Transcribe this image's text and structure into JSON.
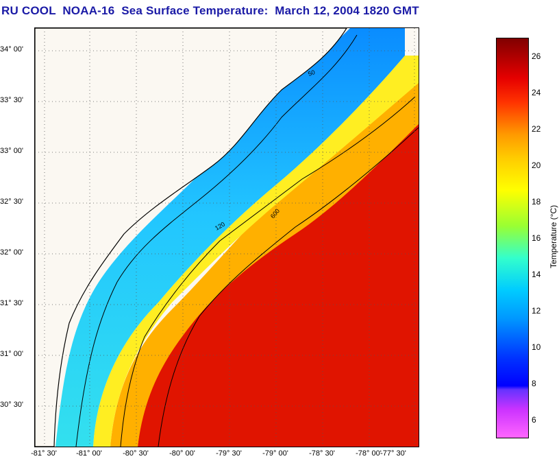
{
  "title": "RU COOL  NOAA-16  Sea Surface Temperature:  March 12, 2004 1820 GMT",
  "latitude_labels": [
    "34° 00'",
    "33° 30'",
    "33° 00'",
    "32° 30'",
    "32° 00'",
    "31° 30'",
    "31° 00'",
    "30° 30'"
  ],
  "longitude_labels": [
    "-81° 30'",
    "-81° 00'",
    "-80° 30'",
    "-80° 00'",
    "-79° 30'",
    "-79° 00'",
    "-78° 30'",
    "-78° 00'",
    "-77° 30'"
  ],
  "isobath_labels": [
    "50",
    "120",
    "600"
  ],
  "colorbar": {
    "unit_label": "Temperature (°C)",
    "ticks": [
      "26",
      "24",
      "22",
      "20",
      "18",
      "16",
      "14",
      "12",
      "10",
      "8",
      "6"
    ],
    "range": [
      5,
      27
    ]
  }
}
